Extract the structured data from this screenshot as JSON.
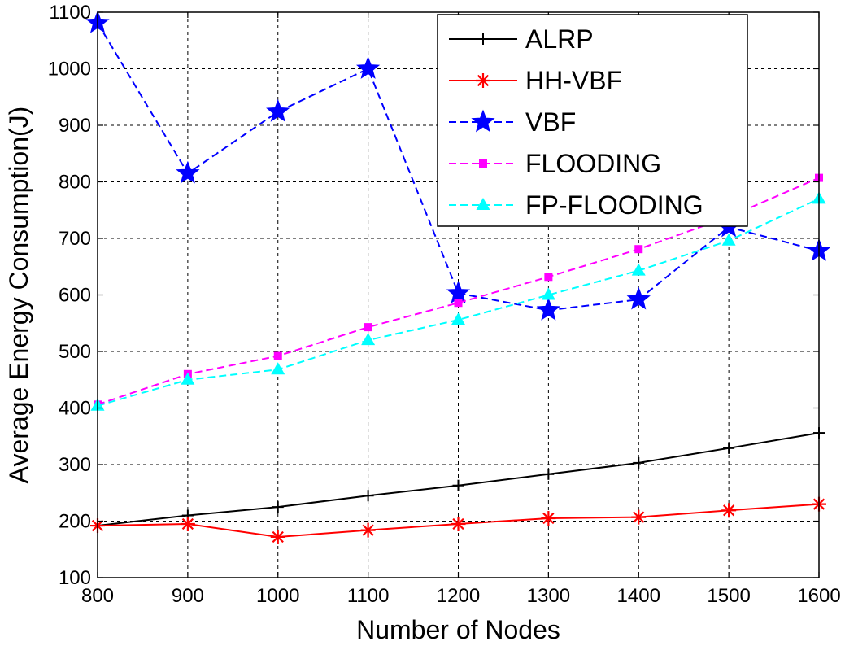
{
  "chart_data": {
    "type": "line",
    "title": "",
    "xlabel": "Number of Nodes",
    "ylabel": "Average Energy Consumption(J)",
    "xlim": [
      800,
      1600
    ],
    "ylim": [
      100,
      1100
    ],
    "grid": true,
    "legend_position": "top-right",
    "x": [
      800,
      900,
      1000,
      1100,
      1200,
      1300,
      1400,
      1500,
      1600
    ],
    "x_tick_labels": [
      "800",
      "900",
      "1000",
      "1100",
      "1200",
      "1300",
      "1400",
      "1500",
      "1600"
    ],
    "y_ticks": [
      100,
      200,
      300,
      400,
      500,
      600,
      700,
      800,
      900,
      1000,
      1100
    ],
    "y_tick_labels": [
      "100",
      "200",
      "300",
      "400",
      "500",
      "600",
      "700",
      "800",
      "900",
      "1000",
      "1100"
    ],
    "series": [
      {
        "name": "ALRP",
        "color": "#000000",
        "dash": "solid",
        "marker": "plus",
        "values": [
          192,
          210,
          225,
          245,
          263,
          283,
          303,
          329,
          356
        ]
      },
      {
        "name": "HH-VBF",
        "color": "#ff0000",
        "dash": "solid",
        "marker": "asterisk",
        "values": [
          192,
          195,
          172,
          184,
          195,
          205,
          207,
          219,
          230
        ]
      },
      {
        "name": "VBF",
        "color": "#0000ff",
        "dash": "dashed",
        "marker": "star",
        "values": [
          1081,
          815,
          924,
          1000,
          603,
          573,
          592,
          720,
          678
        ]
      },
      {
        "name": "FLOODING",
        "color": "#ff00ff",
        "dash": "dashed",
        "marker": "square",
        "values": [
          406,
          460,
          492,
          543,
          586,
          632,
          681,
          738,
          807
        ]
      },
      {
        "name": "FP-FLOODING",
        "color": "#00ffff",
        "dash": "dashed",
        "marker": "triangle",
        "values": [
          404,
          450,
          468,
          520,
          556,
          600,
          643,
          696,
          770
        ]
      }
    ]
  }
}
